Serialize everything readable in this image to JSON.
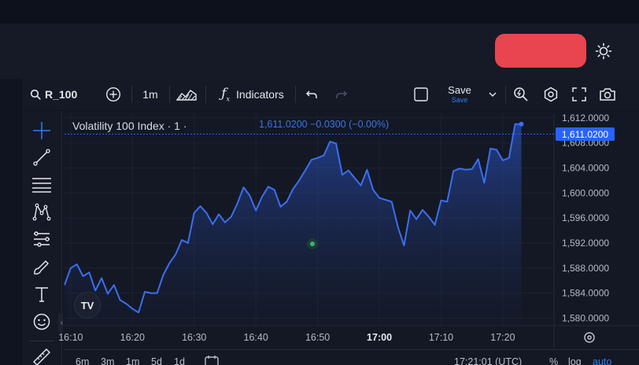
{
  "toolbar": {
    "symbol": "R_100",
    "interval": "1m",
    "indicators_label": "Indicators",
    "save_label": "Save",
    "save_sublabel": "Save"
  },
  "chart": {
    "legend_title": "Volatility 100 Index · 1 ·",
    "legend_values": "1,611.0200  −0.0300 (−0.00%)",
    "last_price_label": "1,611.0200",
    "logo_text": "TV"
  },
  "bottom": {
    "ranges": [
      "6m",
      "3m",
      "1m",
      "5d",
      "1d"
    ],
    "clock": "17:21:01 (UTC)",
    "percent": "%",
    "log": "log",
    "auto": "auto"
  },
  "colors": {
    "cta": "#e8454f",
    "line": "#3b6ff0",
    "accent": "#2962ff"
  },
  "chart_data": {
    "type": "area",
    "x_ticks": [
      "16:10",
      "16:20",
      "16:30",
      "16:40",
      "16:50",
      "17:00",
      "17:10",
      "17:20"
    ],
    "y_ticks": [
      "1,612.0000",
      "1,608.0000",
      "1,604.0000",
      "1,600.0000",
      "1,596.0000",
      "1,592.0000",
      "1,588.0000",
      "1,584.0000",
      "1,580.0000"
    ],
    "ylim": [
      1578.8,
      1612.6
    ],
    "xlim": [
      0,
      77
    ],
    "last_value": 1611.02,
    "series": [
      {
        "values": [
          1585.3,
          1588.0,
          1588.6,
          1586.7,
          1587.3,
          1584.4,
          1586.4,
          1583.9,
          1585.3,
          1582.9,
          1582.3,
          1581.5,
          1580.9,
          1584.2,
          1584.0,
          1584.0,
          1586.9,
          1588.8,
          1590.2,
          1592.5,
          1592.0,
          1596.8,
          1597.9,
          1596.8,
          1595.0,
          1596.6,
          1595.3,
          1596.2,
          1598.3,
          1600.9,
          1599.6,
          1597.2,
          1599.4,
          1601.0,
          1600.5,
          1597.8,
          1598.6,
          1600.6,
          1602.0,
          1603.6,
          1605.3,
          1605.6,
          1606.0,
          1608.2,
          1607.9,
          1602.9,
          1603.6,
          1602.4,
          1601.2,
          1603.7,
          1600.5,
          1599.2,
          1598.9,
          1598.6,
          1594.6,
          1591.6,
          1597.2,
          1595.8,
          1597.3,
          1596.2,
          1594.9,
          1598.8,
          1598.6,
          1603.5,
          1603.9,
          1603.7,
          1603.8,
          1605.4,
          1601.6,
          1607.1,
          1606.9,
          1605.2,
          1605.6,
          1611.0,
          1611.0
        ]
      }
    ]
  }
}
